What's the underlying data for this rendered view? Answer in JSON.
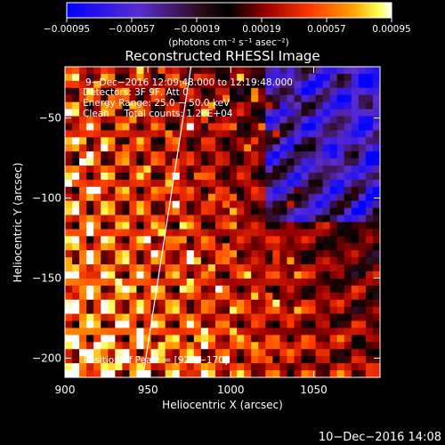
{
  "chart_data": {
    "type": "heatmap",
    "title": "Reconstructed RHESSI Image",
    "xlabel": "Heliocentric X (arcsec)",
    "ylabel": "Heliocentric Y (arcsec)",
    "xlim": [
      900,
      1090
    ],
    "ylim": [
      -212,
      -18
    ],
    "xticks": [
      900,
      950,
      1000,
      1050
    ],
    "xtick_labels": [
      "900",
      "950",
      "1000",
      "1050"
    ],
    "yticks": [
      -50,
      -100,
      -150,
      -200
    ],
    "ytick_labels": [
      "−50",
      "−100",
      "−150",
      "−200"
    ],
    "colorbar": {
      "min": -0.00095,
      "max": 0.00095,
      "ticks": [
        -0.00095,
        -0.00057,
        -0.00019,
        0.00019,
        0.00057,
        0.00095
      ],
      "tick_labels": [
        "−0.00095",
        "−0.00057",
        "−0.00019",
        "0.00019",
        "0.00057",
        "0.00095"
      ],
      "units": "(photons cm⁻² s⁻¹ asec⁻²)",
      "colors": [
        "#0000ff",
        "#6a2ed0",
        "#3b1020",
        "#000000",
        "#9a0000",
        "#ff3000",
        "#ff9a00",
        "#ffff40",
        "#ffffff"
      ]
    },
    "annotations": {
      "time_range": "9−Dec−2016 12:09:48.000 to 12:19:48.000",
      "detectors": "Detectors: 3F 9F, Att 0",
      "energy": "Energy Range: 25.0 − 50.0 keV",
      "clean": "Clean     Total counts: 1.26E+04",
      "peak": "Position of Peak: = [928,−170]"
    },
    "limb_line": {
      "x": [
        947,
        976
      ],
      "y": [
        -212,
        -18
      ]
    },
    "peak": {
      "x": 928,
      "y": -170
    },
    "grid": false
  },
  "footer": {
    "timestamp": "10−Dec−2016 14:08"
  }
}
